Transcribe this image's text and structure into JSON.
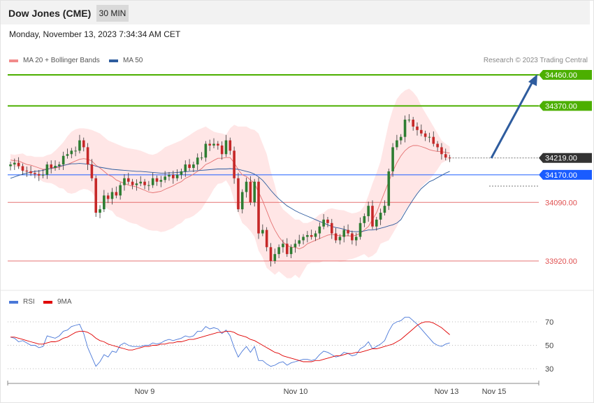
{
  "header": {
    "title": "Dow Jones (CME)",
    "timeframe": "30 MIN"
  },
  "datetime": "Monday, November 13, 2023 7:34:34 AM CET",
  "credit": "Research © 2023 Trading Central",
  "legend": {
    "items": [
      {
        "label": "MA 20 + Bollinger Bands",
        "color": "#f28b8b"
      },
      {
        "label": "MA 50",
        "color": "#2e5c9e"
      }
    ]
  },
  "rsi_legend": {
    "items": [
      {
        "label": "RSI",
        "color": "#4a78d8"
      },
      {
        "label": "9MA",
        "color": "#e00000"
      }
    ]
  },
  "colors": {
    "up": "#2e7d32",
    "down": "#c62828",
    "resistance": "#4caf00",
    "current": "#333333",
    "pivot": "#1a5cff",
    "support": "#e05050",
    "band_fill": "#ffdede",
    "arrow": "#2e5c9e"
  },
  "chart_data": [
    {
      "type": "candlestick",
      "ylim": [
        33840,
        34540
      ],
      "x_ticks": [
        "Nov 9",
        "Nov 10",
        "Nov 13",
        "Nov 15"
      ],
      "levels": [
        {
          "label": "34460.00",
          "value": 34460,
          "kind": "resistance"
        },
        {
          "label": "34370.00",
          "value": 34370,
          "kind": "resistance"
        },
        {
          "label": "34219.00",
          "value": 34219,
          "kind": "current"
        },
        {
          "label": "34170.00",
          "value": 34170,
          "kind": "pivot"
        },
        {
          "label": "34090.00",
          "value": 34090,
          "kind": "support"
        },
        {
          "label": "33920.00",
          "value": 33920,
          "kind": "support"
        }
      ],
      "close": [
        34200,
        34205,
        34195,
        34182,
        34180,
        34175,
        34172,
        34168,
        34170,
        34200,
        34190,
        34196,
        34200,
        34225,
        34230,
        34240,
        34240,
        34270,
        34250,
        34200,
        34160,
        34060,
        34070,
        34110,
        34100,
        34120,
        34110,
        34140,
        34160,
        34150,
        34140,
        34145,
        34150,
        34140,
        34140,
        34160,
        34150,
        34155,
        34165,
        34170,
        34160,
        34170,
        34180,
        34200,
        34190,
        34200,
        34220,
        34220,
        34260,
        34255,
        34260,
        34255,
        34230,
        34270,
        34240,
        34160,
        34070,
        34120,
        34150,
        34090,
        34150,
        34000,
        34010,
        33960,
        33920,
        33940,
        33960,
        33970,
        33940,
        33960,
        33970,
        33980,
        33990,
        33995,
        33990,
        34000,
        34020,
        34040,
        34030,
        34000,
        33980,
        33990,
        34010,
        34000,
        33980,
        33990,
        34030,
        34050,
        34080,
        34020,
        34040,
        34060,
        34080,
        34180,
        34250,
        34270,
        34280,
        34330,
        34330,
        34310,
        34300,
        34290,
        34280,
        34280,
        34260,
        34250,
        34230,
        34220,
        34219
      ],
      "ma20": [
        34213,
        34211,
        34210,
        34205,
        34200,
        34198,
        34194,
        34190,
        34186,
        34187,
        34188,
        34190,
        34192,
        34197,
        34200,
        34205,
        34210,
        34215,
        34217,
        34215,
        34210,
        34198,
        34190,
        34180,
        34170,
        34165,
        34155,
        34150,
        34145,
        34140,
        34137,
        34135,
        34130,
        34125,
        34120,
        34118,
        34120,
        34122,
        34128,
        34133,
        34138,
        34145,
        34150,
        34160,
        34165,
        34172,
        34180,
        34188,
        34200,
        34205,
        34212,
        34218,
        34218,
        34220,
        34220,
        34205,
        34185,
        34170,
        34165,
        34155,
        34145,
        34120,
        34095,
        34065,
        34035,
        34010,
        33990,
        33975,
        33965,
        33960,
        33960,
        33955,
        33960,
        33970,
        33975,
        33980,
        33985,
        33990,
        33995,
        33997,
        33995,
        33993,
        33993,
        33993,
        33992,
        33995,
        34000,
        34010,
        34020,
        34040,
        34060,
        34090,
        34120,
        34150,
        34180,
        34205,
        34225,
        34240,
        34250,
        34255,
        34255,
        34252,
        34248,
        34243,
        34240,
        34238,
        34237,
        34235,
        34233
      ],
      "bb_upper": [
        34230,
        34228,
        34230,
        34232,
        34225,
        34225,
        34222,
        34222,
        34222,
        34227,
        34230,
        34240,
        34252,
        34265,
        34282,
        34295,
        34302,
        34305,
        34305,
        34303,
        34300,
        34295,
        34290,
        34280,
        34270,
        34265,
        34260,
        34255,
        34250,
        34247,
        34245,
        34243,
        34240,
        34235,
        34230,
        34228,
        34232,
        34240,
        34250,
        34255,
        34260,
        34265,
        34270,
        34278,
        34285,
        34293,
        34300,
        34305,
        34310,
        34302,
        34295,
        34292,
        34290,
        34286,
        34305,
        34315,
        34310,
        34310,
        34310,
        34303,
        34300,
        34290,
        34260,
        34230,
        34180,
        34140,
        34090,
        34070,
        34060,
        34050,
        34040,
        34040,
        34030,
        34030,
        34035,
        34045,
        34055,
        34060,
        34070,
        34073,
        34070,
        34068,
        34067,
        34062,
        34058,
        34060,
        34065,
        34080,
        34110,
        34145,
        34175,
        34210,
        34265,
        34320,
        34360,
        34390,
        34405,
        34415,
        34420,
        34410,
        34395,
        34370,
        34350,
        34330,
        34310,
        34290,
        34270,
        34260,
        34252
      ],
      "bb_lower": [
        34195,
        34194,
        34190,
        34178,
        34175,
        34171,
        34166,
        34158,
        34150,
        34147,
        34146,
        34140,
        34132,
        34130,
        34118,
        34115,
        34118,
        34125,
        34129,
        34127,
        34120,
        34101,
        34090,
        34080,
        34070,
        34065,
        34050,
        34045,
        34040,
        34033,
        34029,
        34027,
        34020,
        34015,
        34010,
        34008,
        34008,
        34004,
        34006,
        34011,
        34016,
        34025,
        34030,
        34042,
        34045,
        34051,
        34060,
        34071,
        34090,
        34108,
        34129,
        34144,
        34146,
        34154,
        34135,
        34095,
        34060,
        34030,
        34020,
        34007,
        33990,
        33950,
        33930,
        33900,
        33890,
        33880,
        33890,
        33880,
        33870,
        33870,
        33880,
        33870,
        33890,
        33910,
        33915,
        33915,
        33915,
        33920,
        33920,
        33921,
        33920,
        33918,
        33919,
        33924,
        33926,
        33930,
        33935,
        33940,
        33930,
        33935,
        33945,
        33970,
        33975,
        33980,
        34000,
        34020,
        34045,
        34065,
        34080,
        34100,
        34115,
        34134,
        34146,
        34156,
        34170,
        34186,
        34204,
        34210,
        34214
      ],
      "ma50": [
        34160,
        34164,
        34168,
        34172,
        34175,
        34178,
        34180,
        34181,
        34183,
        34186,
        34189,
        34192,
        34195,
        34197,
        34200,
        34202,
        34202,
        34203,
        34202,
        34201,
        34199,
        34195,
        34192,
        34190,
        34188,
        34186,
        34185,
        34184,
        34183,
        34182,
        34181,
        34180,
        34180,
        34179,
        34178,
        34177,
        34176,
        34175,
        34175,
        34176,
        34176,
        34177,
        34178,
        34179,
        34180,
        34181,
        34182,
        34183,
        34184,
        34185,
        34186,
        34187,
        34187,
        34187,
        34188,
        34187,
        34186,
        34183,
        34180,
        34177,
        34172,
        34164,
        34154,
        34140,
        34125,
        34112,
        34100,
        34090,
        34080,
        34073,
        34066,
        34060,
        34055,
        34050,
        34045,
        34040,
        34035,
        34030,
        34025,
        34020,
        34017,
        34015,
        34012,
        34008,
        34005,
        34005,
        34005,
        34007,
        34010,
        34010,
        34012,
        34015,
        34018,
        34022,
        34025,
        34030,
        34040,
        34060,
        34080,
        34098,
        34115,
        34130,
        34140,
        34150,
        34155,
        34162,
        34168,
        34175,
        34180
      ]
    },
    {
      "type": "line",
      "ylim": [
        20,
        80
      ],
      "y_ticks": [
        70,
        50,
        30
      ],
      "series": [
        {
          "name": "RSI",
          "values": [
            57,
            56,
            53,
            54,
            52,
            50,
            50,
            48,
            49,
            58,
            57,
            56,
            58,
            62,
            63,
            66,
            67,
            68,
            60,
            48,
            40,
            32,
            36,
            42,
            40,
            45,
            44,
            50,
            52,
            50,
            49,
            49,
            49,
            50,
            50,
            52,
            51,
            52,
            54,
            55,
            54,
            55,
            56,
            58,
            57,
            58,
            62,
            62,
            66,
            64,
            65,
            64,
            60,
            63,
            58,
            48,
            40,
            45,
            49,
            44,
            49,
            37,
            37,
            34,
            32,
            33,
            35,
            36,
            33,
            35,
            36,
            37,
            38,
            38,
            37,
            38,
            42,
            45,
            44,
            42,
            40,
            41,
            44,
            43,
            41,
            42,
            47,
            49,
            53,
            47,
            49,
            51,
            54,
            62,
            68,
            70,
            71,
            74,
            74,
            71,
            68,
            64,
            60,
            56,
            52,
            50,
            49,
            51,
            52
          ]
        },
        {
          "name": "9MA",
          "values": [
            57,
            57,
            56,
            55,
            54,
            53,
            52,
            51,
            51,
            52,
            53,
            53,
            54,
            56,
            57,
            59,
            61,
            62,
            62,
            61,
            59,
            56,
            54,
            53,
            51,
            50,
            49,
            48,
            47,
            46,
            46,
            47,
            48,
            49,
            49,
            50,
            50,
            51,
            51,
            52,
            52,
            53,
            53,
            54,
            55,
            55,
            56,
            57,
            58,
            59,
            60,
            61,
            61,
            62,
            62,
            61,
            59,
            58,
            57,
            55,
            54,
            52,
            50,
            48,
            46,
            44,
            43,
            41,
            40,
            39,
            38,
            37,
            36,
            36,
            36,
            37,
            37,
            38,
            39,
            40,
            41,
            41,
            42,
            43,
            43,
            44,
            44,
            45,
            46,
            47,
            47,
            48,
            49,
            50,
            51,
            53,
            55,
            58,
            61,
            64,
            67,
            69,
            70,
            70,
            69,
            67,
            65,
            62,
            59
          ]
        }
      ]
    }
  ]
}
